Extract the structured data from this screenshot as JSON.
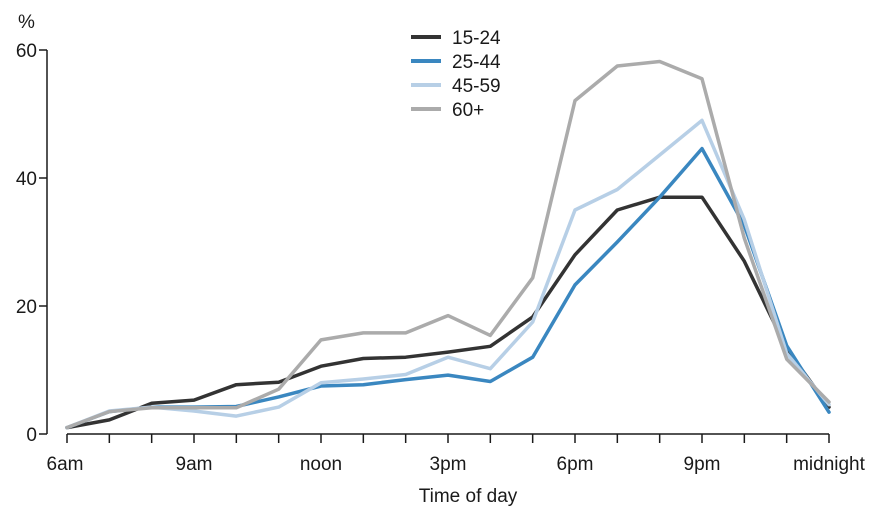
{
  "chart_data": {
    "type": "line",
    "xlabel": "Time of day",
    "ylabel": "%",
    "ylim": [
      0,
      60
    ],
    "yticks": [
      0,
      20,
      40,
      60
    ],
    "x": [
      "6am",
      "7am",
      "8am",
      "9am",
      "10am",
      "11am",
      "noon",
      "1pm",
      "2pm",
      "3pm",
      "4pm",
      "5pm",
      "6pm",
      "7pm",
      "8pm",
      "9pm",
      "10pm",
      "11pm",
      "midnight"
    ],
    "xtick_labels": [
      "6am",
      "9am",
      "noon",
      "3pm",
      "6pm",
      "9pm",
      "midnight"
    ],
    "xtick_label_positions": [
      "6am",
      "9am",
      "noon",
      "3pm",
      "6pm",
      "9pm",
      "midnight"
    ],
    "legend_position": "top-center",
    "grid": false,
    "series": [
      {
        "name": "15-24",
        "color": "#333333",
        "values": [
          1.0,
          2.2,
          4.8,
          5.3,
          7.7,
          8.1,
          10.6,
          11.8,
          12.0,
          12.8,
          13.7,
          18.3,
          28.0,
          35.0,
          37.0,
          37.0,
          27.0,
          13.3,
          4.2
        ]
      },
      {
        "name": "25-44",
        "color": "#3a87c0",
        "values": [
          1.0,
          3.5,
          4.2,
          4.2,
          4.3,
          5.8,
          7.5,
          7.7,
          8.5,
          9.2,
          8.2,
          12.0,
          23.3,
          30.0,
          37.0,
          44.6,
          32.6,
          13.8,
          3.4
        ]
      },
      {
        "name": "45-59",
        "color": "#b7cfe6",
        "values": [
          1.0,
          3.6,
          4.2,
          3.6,
          2.8,
          4.2,
          8.0,
          8.6,
          9.3,
          12.0,
          10.2,
          17.5,
          35.0,
          38.2,
          43.6,
          49.0,
          33.5,
          12.6,
          4.6
        ]
      },
      {
        "name": "60+",
        "color": "#ababab",
        "values": [
          1.0,
          3.5,
          4.1,
          4.1,
          4.1,
          7.0,
          14.7,
          15.8,
          15.8,
          18.5,
          15.4,
          24.4,
          52.1,
          57.5,
          58.2,
          55.5,
          30.6,
          11.7,
          5.0
        ]
      }
    ]
  }
}
